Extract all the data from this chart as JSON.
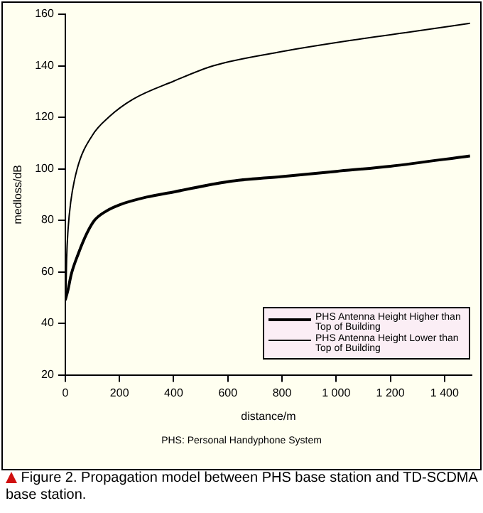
{
  "chart_data": {
    "type": "line",
    "xlabel": "distance/m",
    "ylabel": "medloss/dB",
    "xlim": [
      0,
      1500
    ],
    "xticks": [
      0,
      200,
      400,
      600,
      800,
      {
        "value": 1000,
        "label": "1 000"
      },
      {
        "value": 1200,
        "label": "1 200"
      },
      {
        "value": 1400,
        "label": "1 400"
      }
    ],
    "ylim": [
      20,
      160
    ],
    "yticks": [
      20,
      40,
      60,
      80,
      100,
      120,
      140,
      160
    ],
    "grid": false,
    "legend": "bottom right",
    "marker": "none",
    "line_style": "solid",
    "series": [
      {
        "name": "PHS Antenna Height Higher than Top of Building",
        "color": "#000000",
        "x": [
          0,
          10,
          22,
          48,
          80,
          108,
          150,
          200,
          300,
          400,
          600,
          800,
          1000,
          1200,
          1494
        ],
        "values": [
          49,
          53,
          59,
          67,
          75,
          80,
          83.5,
          86,
          89,
          91,
          95,
          97,
          99,
          101,
          105
        ]
      },
      {
        "name": "PHS Antenna Height Lower than Top of Building",
        "color": "#000000",
        "x": [
          2,
          5,
          10,
          20,
          44,
          100,
          160,
          250,
          400,
          547,
          800,
          1064,
          1300,
          1494
        ],
        "values": [
          50,
          65,
          76,
          87,
          100,
          113,
          120,
          127,
          134,
          140,
          145.5,
          150,
          153.5,
          156.5
        ]
      }
    ],
    "annotations": [
      "PHS: Personal Handyphone System",
      "Figure 2. Propagation model between PHS base station and TD-SCDMA base station."
    ]
  }
}
